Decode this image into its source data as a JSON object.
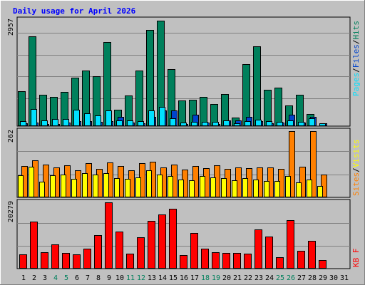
{
  "chart_data": {
    "type": "bar",
    "title": "Daily usage for April 2026",
    "categories": [
      "1",
      "2",
      "3",
      "4",
      "5",
      "6",
      "7",
      "8",
      "9",
      "10",
      "11",
      "12",
      "13",
      "14",
      "15",
      "16",
      "17",
      "18",
      "19",
      "20",
      "21",
      "22",
      "23",
      "24",
      "25",
      "26",
      "27",
      "28",
      "29",
      "30",
      "31"
    ],
    "weekend_days": [
      "4",
      "5",
      "11",
      "12",
      "18",
      "19",
      "25",
      "26"
    ],
    "panels": [
      {
        "id": "hits",
        "max_label": "2957",
        "max_value": 2957,
        "legend": [
          "Pages",
          "/",
          "Files",
          "/",
          "Hits"
        ],
        "legend_colors": [
          "#00E0FF",
          "#000000",
          "#0044CC",
          "#000000",
          "#00805C"
        ],
        "series": [
          {
            "name": "Hits",
            "color": "#00805C",
            "values": [
              980,
              2530,
              880,
              810,
              960,
              1350,
              1550,
              1400,
              2370,
              450,
              860,
              1550,
              2710,
              2970,
              1600,
              710,
              720,
              820,
              600,
              890,
              230,
              1750,
              2250,
              1020,
              1070,
              570,
              870,
              330,
              0,
              0,
              0
            ]
          },
          {
            "name": "Files",
            "color": "#0044CC",
            "values": [
              60,
              90,
              50,
              40,
              80,
              130,
              120,
              110,
              130,
              250,
              90,
              60,
              250,
              420,
              420,
              50,
              300,
              80,
              50,
              140,
              140,
              240,
              130,
              60,
              90,
              300,
              80,
              240,
              60,
              0,
              0
            ]
          },
          {
            "name": "Pages",
            "color": "#00E0FF",
            "values": [
              130,
              470,
              150,
              180,
              190,
              440,
              350,
              280,
              420,
              150,
              150,
              120,
              420,
              520,
              200,
              80,
              110,
              110,
              100,
              150,
              60,
              130,
              160,
              120,
              100,
              150,
              100,
              210,
              60,
              0,
              0
            ]
          }
        ]
      },
      {
        "id": "visits",
        "max_label": "262",
        "max_value": 262,
        "legend": [
          "Sites",
          "/",
          "Visits"
        ],
        "legend_colors": [
          "#FF8000",
          "#000000",
          "#FFFF00"
        ],
        "series": [
          {
            "name": "Sites",
            "color": "#FF8000",
            "values": [
              123,
              146,
              127,
              116,
              126,
              104,
              133,
              110,
              136,
              122,
              105,
              133,
              140,
              118,
              129,
              108,
              123,
              113,
              125,
              112,
              118,
              113,
              118,
              118,
              112,
              262,
              121,
              262,
              88,
              0,
              0
            ]
          },
          {
            "name": "Visits",
            "color": "#FFFF00",
            "values": [
              85,
              119,
              60,
              86,
              88,
              70,
              94,
              88,
              95,
              75,
              70,
              76,
              104,
              89,
              82,
              68,
              66,
              82,
              76,
              75,
              66,
              73,
              69,
              64,
              64,
              84,
              56,
              69,
              44,
              0,
              0
            ]
          }
        ]
      },
      {
        "id": "kbytes",
        "max_label": "20279",
        "max_value": 20279,
        "legend": [
          "KB F"
        ],
        "legend_colors": [
          "#FF0000"
        ],
        "series": [
          {
            "name": "KB F",
            "color": "#FF0000",
            "values": [
              4100,
              14300,
              4800,
              7300,
              4600,
              4200,
              6000,
              10100,
              20279,
              11200,
              4400,
              9400,
              14500,
              16600,
              18300,
              4000,
              10900,
              6000,
              4900,
              4600,
              4600,
              4300,
              11800,
              9600,
              3200,
              14800,
              5200,
              8300,
              2400,
              0,
              0
            ]
          }
        ]
      }
    ]
  }
}
